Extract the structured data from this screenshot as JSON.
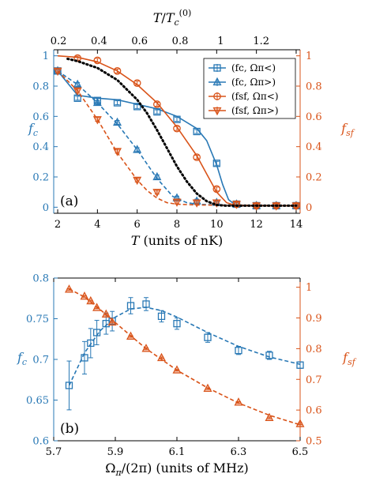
{
  "colors": {
    "blue": "#2878b5",
    "orange": "#d95319",
    "black": "#000000"
  },
  "chart_data": [
    {
      "type": "line",
      "panel_label": "(a)",
      "xlabel": "T (units of nK)",
      "x2label": "T/Tc(0)",
      "ylabel": "fc",
      "y2label": "fsf",
      "xlim": [
        1.8,
        14.2
      ],
      "ylim": [
        -0.04,
        1.04
      ],
      "y2lim": [
        -0.04,
        1.04
      ],
      "xticks": [
        "2",
        "4",
        "6",
        "8",
        "10",
        "12",
        "14"
      ],
      "x2ticks": [
        "0.2",
        "0.4",
        "0.6",
        "0.8",
        "1",
        "1.2"
      ],
      "x2_scale_T_per_unit": 10.2,
      "yticks": [
        "0",
        "0.2",
        "0.4",
        "0.6",
        "0.8",
        "1"
      ],
      "y2ticks": [
        "0",
        "0.2",
        "0.4",
        "0.6",
        "0.8",
        "1"
      ],
      "legend_position": "top-right",
      "series": [
        {
          "name": "(fc, Ωπ<)",
          "color": "#2878b5",
          "marker": "square",
          "axis": "left",
          "x": [
            2,
            3,
            4,
            5,
            6,
            7,
            8,
            9,
            10,
            11,
            12,
            13,
            14
          ],
          "y": [
            0.9,
            0.72,
            0.705,
            0.69,
            0.665,
            0.63,
            0.58,
            0.5,
            0.29,
            0.02,
            0.01,
            0.01,
            0.01
          ],
          "fit_x": [
            2,
            3,
            4,
            5,
            6,
            7,
            8,
            9,
            9.5,
            10,
            10.3,
            10.6,
            11,
            12,
            14
          ],
          "fit_y": [
            0.9,
            0.74,
            0.72,
            0.71,
            0.68,
            0.65,
            0.6,
            0.52,
            0.44,
            0.28,
            0.15,
            0.05,
            0.01,
            0.01,
            0.01
          ],
          "fit_style": "solid"
        },
        {
          "name": "(fc, Ωπ>)",
          "color": "#2878b5",
          "marker": "triangle-up",
          "axis": "left",
          "x": [
            2,
            3,
            4,
            5,
            6,
            7,
            8,
            9,
            10,
            11,
            12,
            13,
            14
          ],
          "y": [
            0.9,
            0.81,
            0.69,
            0.56,
            0.38,
            0.2,
            0.06,
            0.04,
            0.03,
            0.02,
            0.01,
            0.01,
            0.01
          ],
          "fit_x": [
            2,
            3,
            4,
            5,
            6,
            7,
            7.8,
            8.5,
            9,
            10,
            14
          ],
          "fit_y": [
            0.9,
            0.81,
            0.69,
            0.55,
            0.38,
            0.19,
            0.07,
            0.03,
            0.02,
            0.015,
            0.01
          ],
          "fit_style": "dashed"
        },
        {
          "name": "(fsf, Ωπ<)",
          "color": "#d95319",
          "marker": "circle",
          "axis": "right",
          "x": [
            3,
            4,
            5,
            6,
            7,
            8,
            9,
            10,
            11,
            12,
            13,
            14
          ],
          "y": [
            0.985,
            0.97,
            0.9,
            0.82,
            0.68,
            0.52,
            0.33,
            0.12,
            0.02,
            0.01,
            0.01,
            0.01
          ],
          "fit_x": [
            2,
            3,
            4,
            5,
            6,
            7,
            8,
            9,
            9.5,
            10,
            10.5,
            11,
            12,
            14
          ],
          "fit_y": [
            1.0,
            0.99,
            0.96,
            0.9,
            0.81,
            0.69,
            0.53,
            0.34,
            0.22,
            0.1,
            0.03,
            0.01,
            0.01,
            0.01
          ],
          "fit_style": "solid"
        },
        {
          "name": "(fsf, Ωπ>)",
          "color": "#d95319",
          "marker": "triangle-down",
          "axis": "right",
          "x": [
            2,
            3,
            4,
            5,
            6,
            7,
            8,
            9,
            10,
            11,
            12,
            13,
            14
          ],
          "y": [
            0.9,
            0.77,
            0.58,
            0.37,
            0.18,
            0.1,
            0.035,
            0.03,
            0.03,
            0.02,
            0.01,
            0.01,
            0.01
          ],
          "fit_x": [
            2,
            3,
            4,
            5,
            6,
            6.5,
            7,
            7.5,
            8,
            9,
            14
          ],
          "fit_y": [
            0.9,
            0.77,
            0.58,
            0.36,
            0.18,
            0.11,
            0.06,
            0.03,
            0.02,
            0.015,
            0.01
          ],
          "fit_style": "dashed"
        },
        {
          "name": "",
          "color": "#000000",
          "marker": "none",
          "axis": "left",
          "fit_x": [
            2.5,
            3,
            4,
            5,
            6,
            6.5,
            7,
            7.5,
            8,
            8.5,
            9,
            9.5,
            10,
            10.5,
            11,
            12,
            13,
            14
          ],
          "fit_y": [
            0.98,
            0.965,
            0.92,
            0.84,
            0.71,
            0.62,
            0.51,
            0.39,
            0.27,
            0.17,
            0.09,
            0.04,
            0.015,
            0.01,
            0.01,
            0.01,
            0.01,
            0.01
          ],
          "fit_style": "dotted"
        }
      ]
    },
    {
      "type": "line",
      "panel_label": "(b)",
      "xlabel": "Ωπ/(2π) (units of MHz)",
      "ylabel": "fc",
      "y2label": "fsf",
      "xlim": [
        5.7,
        6.5
      ],
      "ylim": [
        0.6,
        0.8
      ],
      "y2lim": [
        0.5,
        1.03
      ],
      "xticks": [
        "5.7",
        "5.9",
        "6.1",
        "6.3",
        "6.5"
      ],
      "yticks": [
        "0.6",
        "0.65",
        "0.7",
        "0.75",
        "0.8"
      ],
      "y2ticks": [
        "0.5",
        "0.6",
        "0.7",
        "0.8",
        "0.9",
        "1"
      ],
      "series": [
        {
          "name": "",
          "color": "#2878b5",
          "marker": "square",
          "axis": "left",
          "x": [
            5.75,
            5.8,
            5.82,
            5.84,
            5.87,
            5.89,
            5.95,
            6.0,
            6.05,
            6.1,
            6.2,
            6.3,
            6.4,
            6.5
          ],
          "y": [
            0.668,
            0.702,
            0.72,
            0.733,
            0.744,
            0.747,
            0.766,
            0.768,
            0.753,
            0.744,
            0.727,
            0.711,
            0.705,
            0.693
          ],
          "err": [
            0.03,
            0.02,
            0.018,
            0.015,
            0.013,
            0.012,
            0.01,
            0.008,
            0.007,
            0.007,
            0.006,
            0.005,
            0.005,
            0.004
          ],
          "fit_x": [
            5.75,
            5.8,
            5.85,
            5.9,
            5.95,
            6.0,
            6.05,
            6.1,
            6.2,
            6.3,
            6.4,
            6.5
          ],
          "fit_y": [
            0.668,
            0.708,
            0.735,
            0.752,
            0.762,
            0.764,
            0.76,
            0.752,
            0.733,
            0.716,
            0.703,
            0.694
          ],
          "fit_style": "dashed"
        },
        {
          "name": "",
          "color": "#d95319",
          "marker": "triangle-up",
          "axis": "right",
          "x": [
            5.75,
            5.8,
            5.82,
            5.84,
            5.87,
            5.89,
            5.95,
            6.0,
            6.05,
            6.1,
            6.2,
            6.3,
            6.4,
            6.5
          ],
          "y": [
            0.993,
            0.97,
            0.955,
            0.933,
            0.912,
            0.886,
            0.84,
            0.8,
            0.77,
            0.73,
            0.67,
            0.625,
            0.575,
            0.555
          ],
          "fit_x": [
            5.75,
            5.8,
            5.85,
            5.9,
            5.95,
            6.0,
            6.05,
            6.1,
            6.2,
            6.3,
            6.4,
            6.5
          ],
          "fit_y": [
            0.995,
            0.968,
            0.928,
            0.885,
            0.842,
            0.8,
            0.765,
            0.73,
            0.672,
            0.623,
            0.583,
            0.552
          ],
          "fit_style": "dashed"
        }
      ]
    }
  ]
}
